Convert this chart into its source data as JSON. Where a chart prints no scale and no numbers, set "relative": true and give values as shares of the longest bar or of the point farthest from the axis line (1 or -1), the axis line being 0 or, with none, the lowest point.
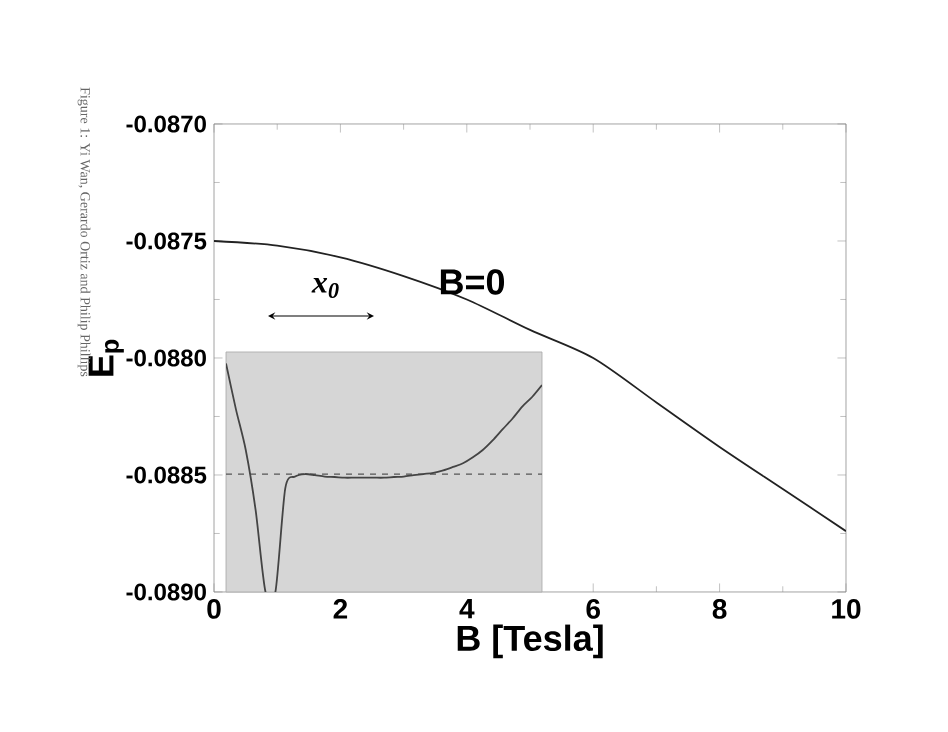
{
  "chart_data": [
    {
      "type": "line",
      "xlabel": "B [Tesla]",
      "ylabel": "E$_{p}$",
      "x": [
        0,
        1,
        2,
        3,
        4,
        5,
        6,
        7,
        8,
        9,
        10
      ],
      "series": [
        {
          "color": "#222222",
          "values": [
            -0.0875,
            -0.08752,
            -0.08757,
            -0.08765,
            -0.08775,
            -0.08788,
            -0.088,
            -0.08819,
            -0.08838,
            -0.08856,
            -0.08874
          ]
        }
      ],
      "xlim": [
        0,
        10
      ],
      "xticks": [
        0,
        2,
        4,
        6,
        8,
        10
      ],
      "ylim": [
        -0.089,
        -0.087
      ],
      "yticks": [
        {
          "value": -0.089,
          "label": "-0.0890"
        },
        {
          "value": -0.0885,
          "label": "-0.0885"
        },
        {
          "value": -0.088,
          "label": "-0.0880"
        },
        {
          "value": -0.0875,
          "label": "-0.0875"
        },
        {
          "value": -0.087,
          "label": "-0.0870"
        }
      ],
      "grid": false,
      "annotations": [
        "Figure 1: Yi Wan, Gerardo Ortiz and Philip Phillips"
      ]
    },
    {
      "type": "line",
      "relative": true,
      "categories": [
        null,
        null,
        null,
        null,
        null,
        null,
        null,
        null,
        null,
        null,
        null,
        null,
        null,
        null,
        null,
        null,
        null,
        null,
        null,
        null,
        null,
        null,
        null,
        null,
        null,
        null,
        null,
        null,
        null,
        null,
        null,
        null,
        null
      ],
      "series": [
        {
          "color": "#444444",
          "values": [
            1,
            0.8,
            0.621,
            0.358,
            0,
            0,
            0.453,
            0.505,
            0.516,
            0.511,
            0.505,
            0.503,
            0.5,
            0.5,
            0.5,
            0.5,
            0.5,
            0.503,
            0.505,
            0.511,
            0.516,
            0.521,
            0.532,
            0.547,
            0.563,
            0.589,
            0.621,
            0.663,
            0.711,
            0.758,
            0.811,
            0.853,
            0.905
          ]
        }
      ],
      "ref_lines": [
        {
          "axis": "y",
          "value": 0.516,
          "color": "#555555",
          "line_style": "dashed"
        }
      ],
      "annotations": [
        "x$_{0}$",
        "B=0"
      ]
    }
  ]
}
